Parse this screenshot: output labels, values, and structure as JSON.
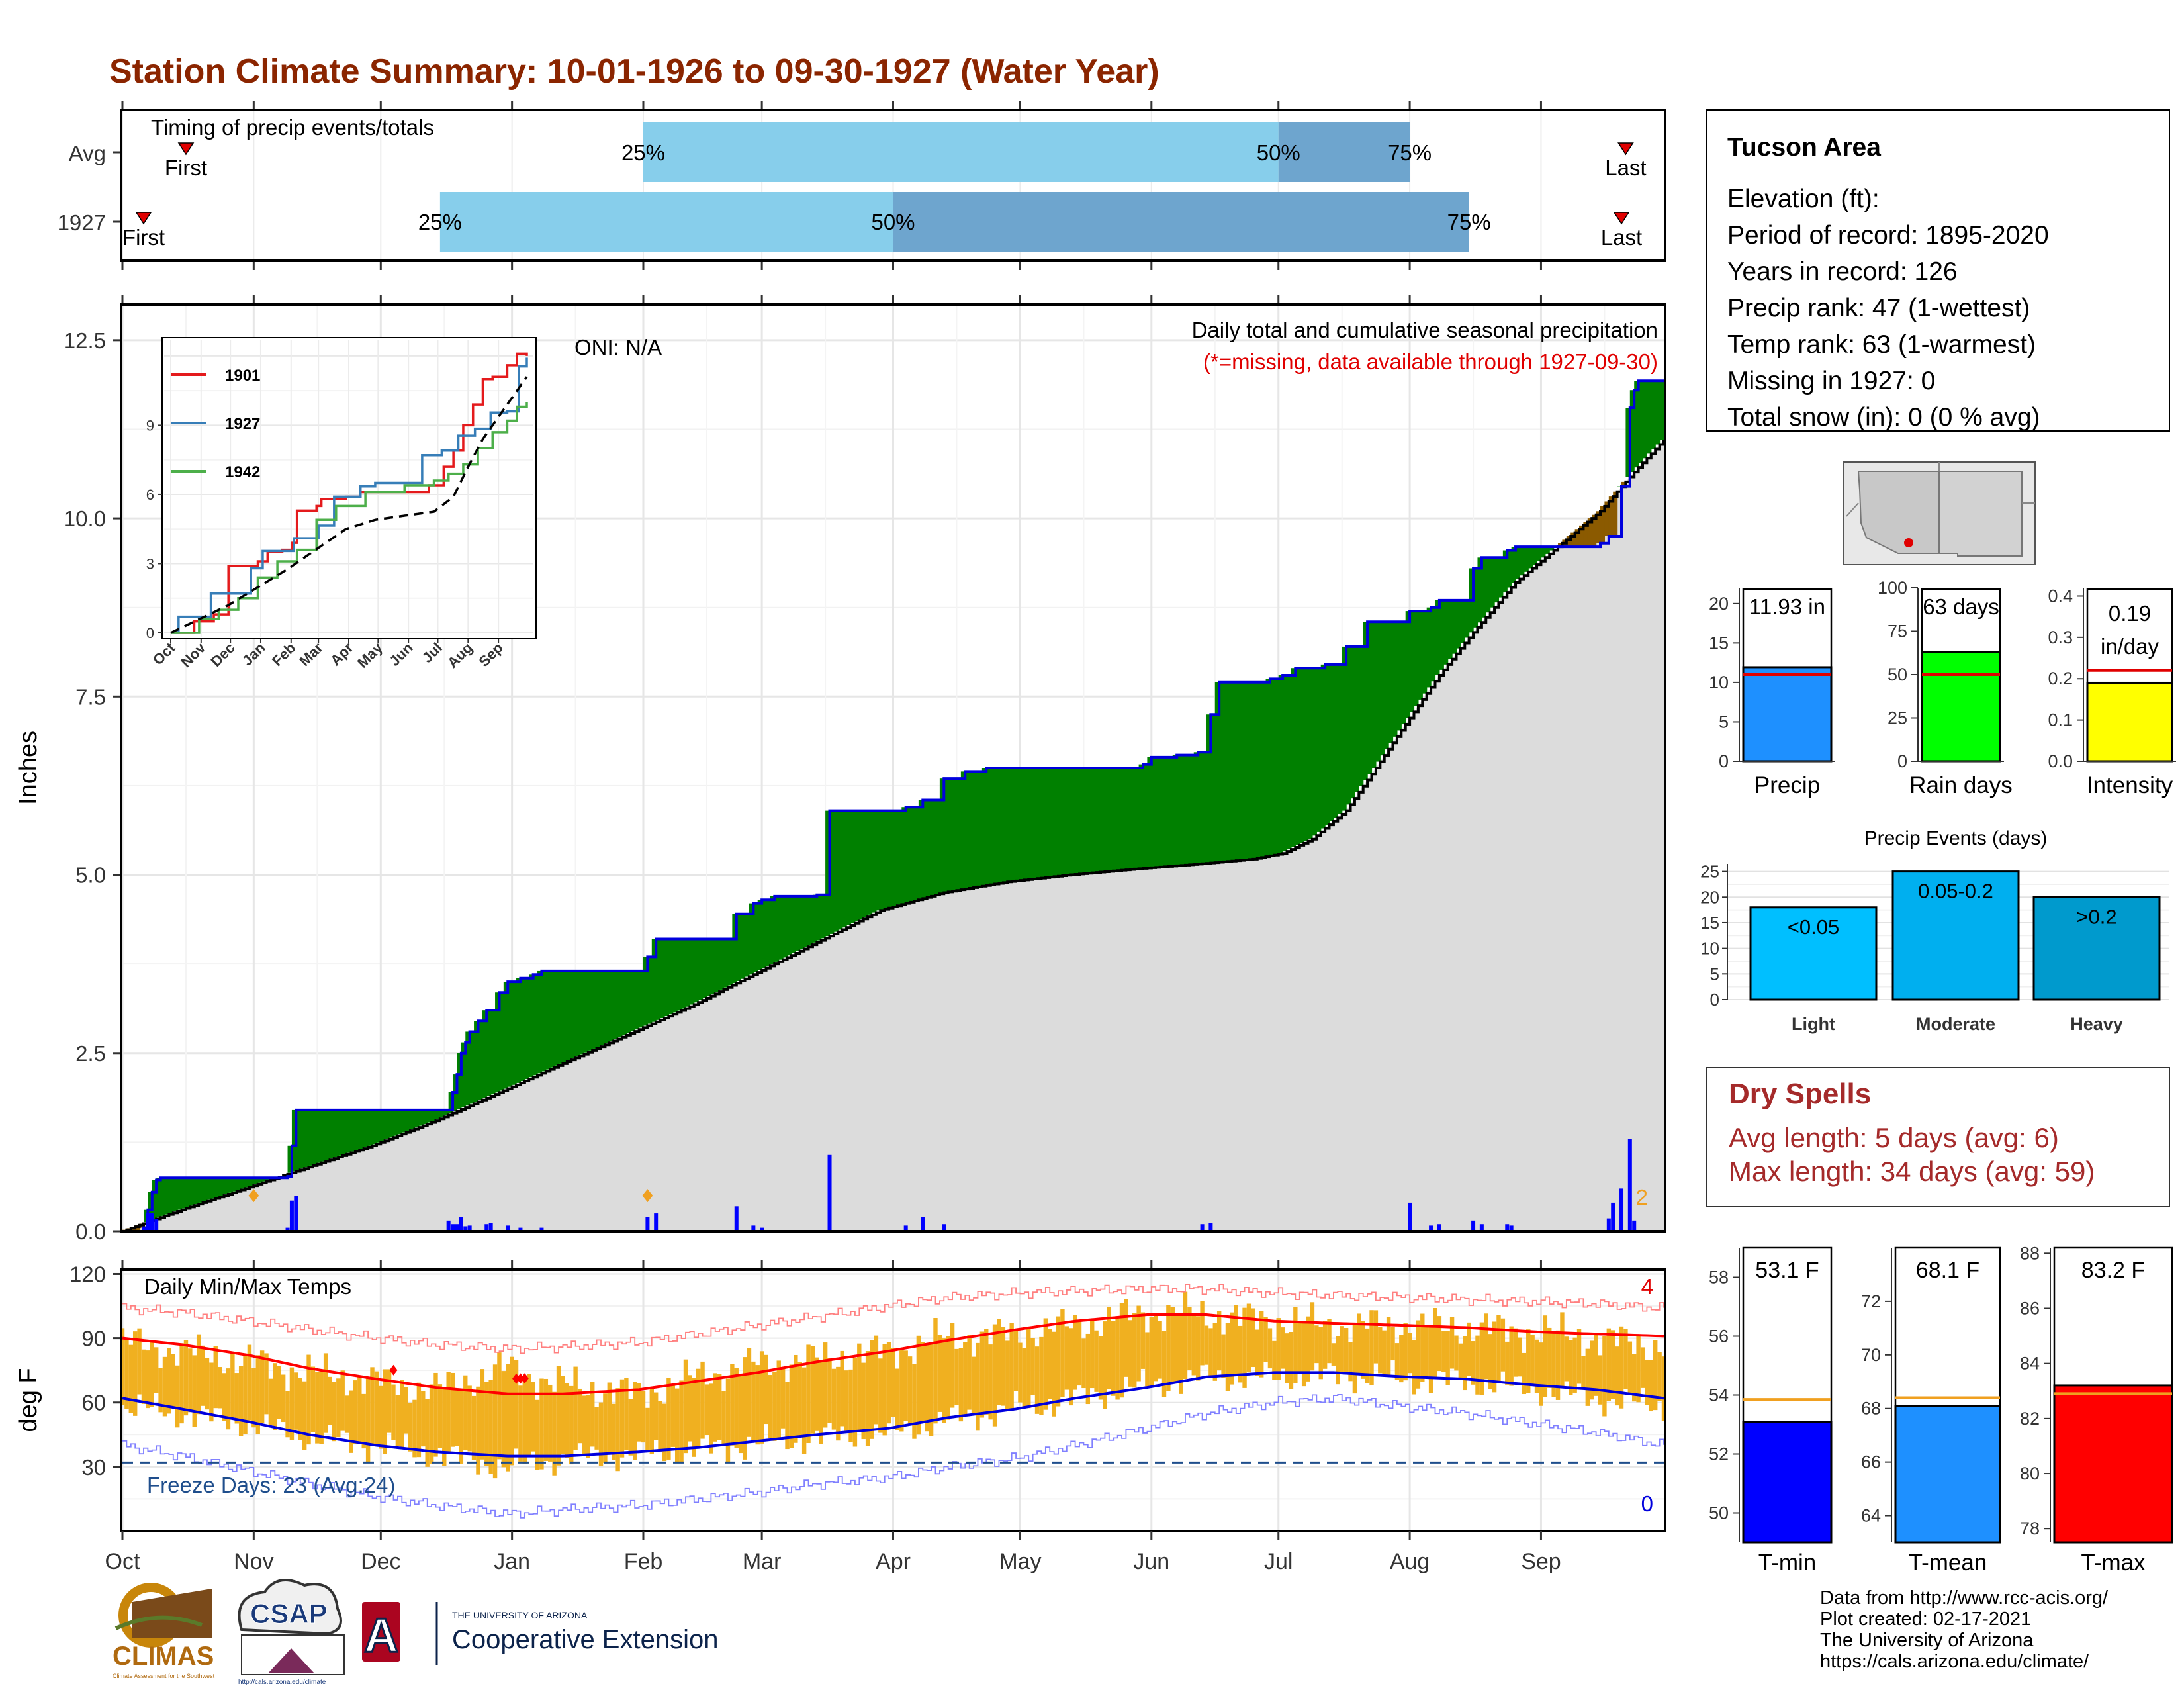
{
  "title": "Station Climate Summary: 10-01-1926 to 09-30-1927 (Water Year)",
  "timing": {
    "title": "Timing of precip events/totals",
    "rows": [
      {
        "label": "Avg",
        "first_label": "First",
        "last_label": "Last",
        "first": "Oct 16",
        "last": "Sep 21",
        "p25": "Feb",
        "p50": "Jul",
        "p75": "Aug",
        "p25_label": "25%",
        "p50_label": "50%",
        "p75_label": "75%"
      },
      {
        "label": "1927",
        "first_label": "First",
        "last_label": "Last",
        "first": "Oct 6",
        "last": "Sep 20",
        "p25": "Dec 15",
        "p50": "Apr",
        "p75": "Aug 15",
        "p25_label": "25%",
        "p50_label": "50%",
        "p75_label": "75%"
      }
    ],
    "colors": {
      "light": "#87ceeb",
      "dark": "#6ea5ce",
      "marker": "#e00000"
    }
  },
  "precip_panel": {
    "ylabel": "Inches",
    "yticks": [
      "0.0",
      "2.5",
      "5.0",
      "7.5",
      "10.0",
      "12.5"
    ],
    "ylim": [
      0,
      13
    ],
    "oni_text": "ONI: N/A",
    "header": "Daily total and cumulative seasonal precipitation",
    "subheader": "(*=missing, data available through 1927-09-30)",
    "corner_count": "2",
    "colors": {
      "above": "#008000",
      "below": "#8b5a00",
      "normal": "#dcdcdc",
      "observed_line": "#0000dd",
      "bars": "#0000ff",
      "avg_line": "#000000"
    }
  },
  "inset": {
    "series": [
      {
        "name": "1901",
        "color": "#e41a1c"
      },
      {
        "name": "1927",
        "color": "#377eb8"
      },
      {
        "name": "1942",
        "color": "#4daf4a"
      }
    ],
    "yticks": [
      "0",
      "3",
      "6",
      "9"
    ],
    "xticks": [
      "Oct",
      "Nov",
      "Dec",
      "Jan",
      "Feb",
      "Mar",
      "Apr",
      "May",
      "Jun",
      "Jul",
      "Aug",
      "Sep"
    ]
  },
  "temp_panel": {
    "ylabel": "deg F",
    "title": "Daily Min/Max Temps",
    "yticks": [
      "30",
      "60",
      "90",
      "120"
    ],
    "freeze_text": "Freeze Days: 23 (Avg:24)",
    "record_high_count": "4",
    "record_low_count": "0",
    "colors": {
      "bars": "#f0b020",
      "max_avg": "#ff0000",
      "min_avg": "#0000dd",
      "record_max": "#ff8080",
      "record_min": "#8080ff",
      "freeze": "#1f4e8c"
    }
  },
  "x_axis": {
    "months": [
      "Oct",
      "Nov",
      "Dec",
      "Jan",
      "Feb",
      "Mar",
      "Apr",
      "May",
      "Jun",
      "Jul",
      "Aug",
      "Sep"
    ]
  },
  "info": {
    "title": "Tucson Area",
    "lines": [
      "Elevation (ft):",
      "Period of record: 1895-2020",
      "Years in record: 126",
      "Precip rank: 47 (1-wettest)",
      "Temp rank: 63 (1-warmest)",
      "Missing in 1927: 0",
      "Total snow (in): 0 (0 % avg)"
    ]
  },
  "summary_bars": [
    {
      "label": "Precip",
      "value_text": "11.93 in",
      "value": 11.93,
      "avg": 11.0,
      "ymax": 22,
      "ticks": [
        "0",
        "5",
        "10",
        "15",
        "20"
      ],
      "tick_vals": [
        0,
        5,
        10,
        15,
        20
      ],
      "color": "#1e90ff"
    },
    {
      "label": "Rain days",
      "value_text": "63 days",
      "value": 63,
      "avg": 50,
      "ymax": 100,
      "ticks": [
        "0",
        "25",
        "50",
        "75",
        "100"
      ],
      "tick_vals": [
        0,
        25,
        50,
        75,
        100
      ],
      "color": "#00ff00"
    },
    {
      "label": "Intensity",
      "value_text": "0.19 in/day",
      "value": 0.19,
      "avg": 0.22,
      "ymax": 0.42,
      "ticks": [
        "0.0",
        "0.1",
        "0.2",
        "0.3",
        "0.4"
      ],
      "tick_vals": [
        0,
        0.1,
        0.2,
        0.3,
        0.4
      ],
      "color": "#ffff00"
    }
  ],
  "events": {
    "title": "Precip Events (days)",
    "yticks": [
      "0",
      "5",
      "10",
      "15",
      "20",
      "25"
    ],
    "bars": [
      {
        "cat": "Light",
        "label": "<0.05",
        "value": 18,
        "color": "#00bfff"
      },
      {
        "cat": "Moderate",
        "label": "0.05-0.2",
        "value": 25,
        "color": "#00afef"
      },
      {
        "cat": "Heavy",
        "label": ">0.2",
        "value": 20,
        "color": "#009acd"
      }
    ]
  },
  "dry_spells": {
    "title": "Dry Spells",
    "avg_line": "Avg length: 5 days (avg: 6)",
    "max_line": "Max length: 34 days (avg: 59)"
  },
  "temp_bars": [
    {
      "label": "T-min",
      "value_text": "53.1 F",
      "value": 53.1,
      "avg": 53.85,
      "ylim": [
        49,
        59
      ],
      "ticks": [
        "50",
        "52",
        "54",
        "56",
        "58"
      ],
      "tick_vals": [
        50,
        52,
        54,
        56,
        58
      ],
      "color": "#0000ff"
    },
    {
      "label": "T-mean",
      "value_text": "68.1 F",
      "value": 68.1,
      "avg": 68.4,
      "ylim": [
        63,
        74
      ],
      "ticks": [
        "64",
        "66",
        "68",
        "70",
        "72"
      ],
      "tick_vals": [
        64,
        66,
        68,
        70,
        72
      ],
      "color": "#1e90ff"
    },
    {
      "label": "T-max",
      "value_text": "83.2 F",
      "value": 83.2,
      "avg": 82.9,
      "ylim": [
        77.5,
        88.2
      ],
      "ticks": [
        "78",
        "80",
        "82",
        "84",
        "86",
        "88"
      ],
      "tick_vals": [
        78,
        80,
        82,
        84,
        86,
        88
      ],
      "color": "#ff0000"
    }
  ],
  "credits": [
    "Data from http://www.rcc-acis.org/",
    "Plot created: 02-17-2021",
    "The University of Arizona",
    "https://cals.arizona.edu/climate/"
  ],
  "logos": {
    "climas": "CLIMAS",
    "climas_sub": "Climate Assessment for the Southwest",
    "csap": "CSAP",
    "csap_url": "http://cals.arizona.edu/climate",
    "ua_mark": "A",
    "ua_small": "THE UNIVERSITY OF ARIZONA",
    "ua_big": "Cooperative Extension"
  },
  "chart_data": [
    {
      "type": "area",
      "title": "Daily total and cumulative seasonal precipitation",
      "ylabel": "Inches",
      "ylim": [
        0,
        13
      ],
      "x_kind": "day of water year (1 = Oct 1)",
      "cumulative_1927": {
        "x": [
          1,
          6,
          7,
          8,
          9,
          10,
          40,
          41,
          42,
          78,
          79,
          80,
          81,
          82,
          83,
          85,
          87,
          90,
          92,
          95,
          98,
          100,
          120,
          125,
          127,
          145,
          146,
          150,
          152,
          155,
          158,
          165,
          168,
          170,
          175,
          178,
          180,
          186,
          190,
          195,
          200,
          205,
          210,
          215,
          220,
          235,
          242,
          244,
          246,
          250,
          252,
          255,
          258,
          260,
          270,
          272,
          275,
          278,
          285,
          290,
          295,
          305,
          310,
          312,
          320,
          322,
          328,
          330,
          335,
          340,
          345,
          350,
          352,
          355,
          357,
          358,
          359,
          360,
          365
        ],
        "y": [
          0.0,
          0.05,
          0.3,
          0.55,
          0.72,
          0.75,
          0.77,
          1.2,
          1.7,
          1.7,
          1.95,
          2.2,
          2.5,
          2.65,
          2.8,
          2.95,
          3.1,
          3.35,
          3.5,
          3.55,
          3.6,
          3.65,
          3.65,
          3.85,
          4.1,
          4.1,
          4.45,
          4.6,
          4.65,
          4.7,
          4.7,
          4.72,
          5.9,
          5.9,
          5.9,
          5.9,
          5.9,
          5.95,
          6.05,
          6.35,
          6.45,
          6.5,
          6.5,
          6.5,
          6.5,
          6.5,
          6.55,
          6.65,
          6.65,
          6.68,
          6.68,
          6.72,
          7.25,
          7.7,
          7.7,
          7.75,
          7.8,
          7.9,
          7.95,
          8.2,
          8.55,
          8.7,
          8.75,
          8.85,
          9.3,
          9.45,
          9.55,
          9.6,
          9.6,
          9.6,
          9.6,
          9.65,
          9.75,
          10.45,
          11.55,
          11.8,
          11.93,
          11.93,
          11.93
        ]
      },
      "average_cumulative": {
        "x": [
          1,
          15,
          30,
          45,
          60,
          75,
          92,
          105,
          120,
          135,
          150,
          165,
          180,
          195,
          210,
          225,
          240,
          255,
          268,
          275,
          282,
          290,
          297,
          305,
          312,
          320,
          330,
          340,
          350,
          358,
          365
        ],
        "y": [
          0.0,
          0.3,
          0.6,
          0.9,
          1.2,
          1.55,
          2.0,
          2.35,
          2.75,
          3.15,
          3.6,
          4.05,
          4.5,
          4.75,
          4.9,
          5.0,
          5.08,
          5.15,
          5.22,
          5.3,
          5.5,
          5.9,
          6.5,
          7.2,
          7.8,
          8.4,
          9.1,
          9.6,
          10.1,
          10.65,
          11.1
        ]
      },
      "daily_totals": {
        "x": [
          6,
          7,
          8,
          9,
          40,
          41,
          42,
          78,
          79,
          80,
          81,
          82,
          83,
          87,
          88,
          92,
          95,
          100,
          125,
          127,
          146,
          150,
          152,
          168,
          186,
          190,
          195,
          256,
          258,
          305,
          310,
          312,
          320,
          322,
          328,
          329,
          352,
          353,
          355,
          357,
          358
        ],
        "y": [
          0.05,
          0.25,
          0.25,
          0.17,
          0.05,
          0.43,
          0.5,
          0.15,
          0.1,
          0.1,
          0.2,
          0.07,
          0.08,
          0.1,
          0.12,
          0.08,
          0.05,
          0.05,
          0.2,
          0.25,
          0.35,
          0.08,
          0.05,
          1.07,
          0.08,
          0.2,
          0.1,
          0.1,
          0.12,
          0.4,
          0.08,
          0.1,
          0.15,
          0.1,
          0.1,
          0.08,
          0.18,
          0.4,
          0.6,
          1.3,
          0.15
        ]
      },
      "inset": {
        "type": "line",
        "ylim": [
          0,
          12.6
        ],
        "series": [
          {
            "name": "1901",
            "x": [
              1,
              20,
              25,
              45,
              60,
              70,
              90,
              100,
              115,
              125,
              130,
              150,
              155,
              180,
              195,
              250,
              265,
              280,
              290,
              300,
              310,
              320,
              330,
              345,
              355,
              365
            ],
            "y": [
              0,
              0,
              0.5,
              0.8,
              2.9,
              2.9,
              3.1,
              3.5,
              3.6,
              3.9,
              5.3,
              5.5,
              5.8,
              5.9,
              6.1,
              6.1,
              6.4,
              7.2,
              7.9,
              9.0,
              9.9,
              11.0,
              11.1,
              11.6,
              12.1,
              12.0
            ]
          },
          {
            "name": "1927",
            "x": [
              1,
              9,
              42,
              83,
              95,
              127,
              152,
              168,
              195,
              210,
              258,
              278,
              295,
              312,
              328,
              345,
              357,
              365
            ],
            "y": [
              0,
              0.7,
              1.7,
              2.8,
              3.55,
              4.1,
              4.65,
              5.9,
              6.35,
              6.5,
              7.7,
              7.9,
              8.55,
              8.85,
              9.55,
              9.6,
              11.55,
              11.93
            ]
          },
          {
            "name": "1942",
            "x": [
              1,
              30,
              50,
              70,
              90,
              110,
              130,
              150,
              170,
              200,
              240,
              270,
              285,
              300,
              315,
              330,
              345,
              355,
              365
            ],
            "y": [
              0,
              0.6,
              1.0,
              1.5,
              2.4,
              3.1,
              3.6,
              4.9,
              5.5,
              6.1,
              6.4,
              6.6,
              6.9,
              7.3,
              8.0,
              8.7,
              9.2,
              9.8,
              10.0
            ]
          }
        ],
        "average": {
          "x": [
            1,
            60,
            120,
            180,
            210,
            240,
            270,
            290,
            305,
            320,
            340,
            365
          ],
          "y": [
            0,
            1.2,
            2.75,
            4.5,
            4.9,
            5.08,
            5.25,
            5.9,
            7.2,
            8.4,
            9.6,
            11.1
          ]
        }
      }
    },
    {
      "type": "bar",
      "title": "Daily Min/Max Temps",
      "ylabel": "deg F",
      "ylim": [
        0,
        122
      ],
      "x_kind": "day of water year (1 = Oct 1)",
      "anchor_days": [
        1,
        15,
        31,
        45,
        61,
        75,
        92,
        105,
        123,
        137,
        151,
        165,
        182,
        196,
        212,
        226,
        243,
        257,
        273,
        287,
        304,
        318,
        335,
        349,
        365
      ],
      "avg_max": [
        90,
        87,
        82,
        76,
        71,
        67,
        64,
        64,
        66,
        70,
        74,
        79,
        84,
        89,
        94,
        98,
        101,
        101,
        98,
        97,
        96,
        95,
        93,
        92,
        91
      ],
      "avg_min": [
        62,
        57,
        51,
        45,
        40,
        37,
        35,
        35,
        37,
        39,
        42,
        45,
        48,
        53,
        57,
        62,
        67,
        72,
        74,
        74,
        72,
        71,
        68,
        66,
        62
      ],
      "record_max": [
        104,
        102,
        98,
        94,
        90,
        87,
        85,
        86,
        88,
        92,
        96,
        100,
        105,
        109,
        111,
        112,
        113,
        113,
        111,
        110,
        109,
        108,
        107,
        106,
        104
      ],
      "record_min": [
        40,
        35,
        28,
        22,
        16,
        12,
        8,
        10,
        12,
        15,
        18,
        22,
        25,
        30,
        34,
        40,
        48,
        55,
        60,
        62,
        58,
        55,
        50,
        46,
        40
      ],
      "obs_max": [
        88,
        84,
        79,
        74,
        70,
        66,
        76,
        68,
        64,
        72,
        78,
        80,
        84,
        90,
        92,
        96,
        102,
        101,
        98,
        96,
        96,
        95,
        93,
        90,
        86
      ],
      "obs_min": [
        58,
        55,
        50,
        44,
        40,
        36,
        30,
        34,
        36,
        38,
        41,
        44,
        46,
        52,
        57,
        62,
        68,
        72,
        72,
        73,
        71,
        70,
        66,
        62,
        58
      ],
      "record_high_days": [
        94,
        95,
        96,
        65
      ],
      "freeze_threshold": 32
    }
  ]
}
